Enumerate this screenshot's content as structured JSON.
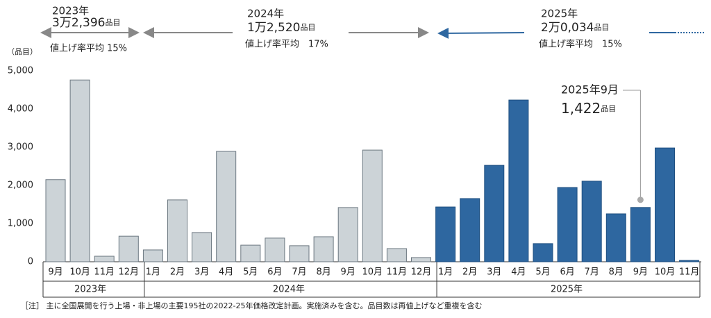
{
  "chart_data": {
    "type": "bar",
    "y_label": "（品目）",
    "ylim": [
      0,
      5000
    ],
    "yticks": [
      0,
      {
        "value": 1000,
        "label": "1,000"
      },
      {
        "value": 2000,
        "label": "2,000"
      },
      {
        "value": 3000,
        "label": "3,000"
      },
      {
        "value": 4000,
        "label": "4,000"
      },
      {
        "value": 5000,
        "label": "5,000"
      }
    ],
    "groups": [
      {
        "name": "2023年",
        "color": "#ccd3d7",
        "categories": [
          "9月",
          "10月",
          "11月",
          "12月"
        ],
        "values": [
          2150,
          4760,
          145,
          670
        ]
      },
      {
        "name": "2024年",
        "color": "#ccd3d7",
        "categories": [
          "1月",
          "2月",
          "3月",
          "4月",
          "5月",
          "6月",
          "7月",
          "8月",
          "9月",
          "10月",
          "11月",
          "12月"
        ],
        "values": [
          310,
          1620,
          765,
          2890,
          435,
          620,
          420,
          655,
          1420,
          2925,
          345,
          110
        ]
      },
      {
        "name": "2025年",
        "color": "#2e67a0",
        "categories": [
          "1月",
          "2月",
          "3月",
          "4月",
          "5月",
          "6月",
          "7月",
          "8月",
          "9月",
          "10月",
          "11月"
        ],
        "values": [
          1435,
          1655,
          2525,
          4235,
          475,
          1945,
          2110,
          1255,
          1422,
          2980,
          35
        ]
      }
    ],
    "periods": [
      {
        "year": "2023年",
        "total": "3万2,396",
        "unit": "品目",
        "rate": "値上げ率平均 15%"
      },
      {
        "year": "2024年",
        "total": "1万2,520",
        "unit": "品目",
        "rate": "値上げ率平均　17%"
      },
      {
        "year": "2025年",
        "total": "2万0,034",
        "unit": "品目",
        "rate": "値上げ率平均　15%"
      }
    ],
    "callout": {
      "label": "2025年9月",
      "value": "1,422",
      "unit": "品目"
    },
    "note": "［注］ 主に全国展開を行う上場・非上場の主要195社の2022-25年価格改定計画。実施済みを含む。品目数は再値上げなど重複を含む"
  }
}
